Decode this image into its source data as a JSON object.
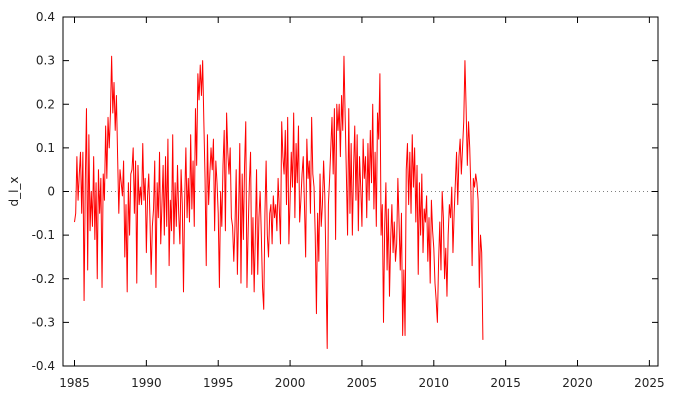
{
  "chart_data": {
    "type": "line",
    "title": "",
    "xlabel": "",
    "ylabel": "d_l_x",
    "xlim": [
      1984.2,
      2025.6
    ],
    "ylim": [
      -0.4,
      0.4
    ],
    "x_ticks": [
      "1985",
      "1990",
      "1995",
      "2000",
      "2005",
      "2010",
      "2015",
      "2020",
      "2025"
    ],
    "y_ticks": [
      "-0.4",
      "-0.3",
      "-0.2",
      "-0.1",
      "0",
      "0.1",
      "0.2",
      "0.3",
      "0.4"
    ],
    "zero_line": true,
    "grid": false,
    "legend": "none",
    "colors": {
      "series": "#ff0000",
      "zero_line": "#808080",
      "axes": "#000000"
    },
    "x_start": 1985.0,
    "x_step": 0.0833333,
    "series": [
      {
        "values": [
          -0.07,
          -0.05,
          0.08,
          -0.02,
          0.04,
          0.09,
          -0.05,
          0.09,
          -0.25,
          0.02,
          0.19,
          -0.18,
          0.13,
          -0.09,
          0.0,
          -0.08,
          0.08,
          -0.11,
          0.02,
          -0.2,
          0.05,
          -0.05,
          0.03,
          -0.22,
          0.04,
          -0.02,
          0.15,
          0.03,
          0.17,
          0.1,
          0.18,
          0.31,
          0.18,
          0.25,
          0.14,
          0.22,
          0.08,
          -0.05,
          0.05,
          0.02,
          -0.01,
          0.07,
          -0.15,
          -0.03,
          -0.23,
          0.02,
          -0.1,
          0.04,
          0.05,
          0.1,
          -0.05,
          0.07,
          -0.21,
          0.06,
          -0.03,
          0.01,
          -0.03,
          0.11,
          -0.02,
          0.03,
          -0.14,
          -0.01,
          0.04,
          -0.06,
          -0.19,
          -0.08,
          -0.04,
          0.07,
          -0.22,
          0.02,
          -0.06,
          0.09,
          -0.12,
          -0.03,
          0.06,
          -0.1,
          0.08,
          -0.08,
          0.12,
          -0.17,
          -0.02,
          -0.09,
          0.13,
          -0.12,
          0.02,
          -0.08,
          0.06,
          -0.05,
          -0.12,
          0.05,
          -0.03,
          -0.23,
          -0.02,
          0.1,
          -0.06,
          0.03,
          -0.07,
          0.13,
          -0.04,
          0.07,
          -0.08,
          0.19,
          0.06,
          0.27,
          0.21,
          0.29,
          0.22,
          0.3,
          0.16,
          0.03,
          -0.17,
          0.13,
          -0.03,
          0.04,
          0.1,
          0.05,
          0.12,
          -0.09,
          0.07,
          0.02,
          -0.05,
          -0.22,
          0.0,
          -0.08,
          0.06,
          0.14,
          -0.09,
          0.18,
          0.09,
          0.04,
          0.1,
          -0.06,
          -0.08,
          -0.16,
          -0.08,
          0.05,
          -0.19,
          -0.05,
          0.11,
          -0.21,
          0.04,
          -0.11,
          0.06,
          0.16,
          -0.22,
          -0.09,
          0.02,
          0.09,
          -0.19,
          -0.06,
          -0.23,
          -0.1,
          0.05,
          -0.19,
          -0.06,
          0.0,
          -0.1,
          -0.22,
          -0.27,
          -0.05,
          0.07,
          -0.1,
          -0.15,
          -0.05,
          -0.03,
          -0.12,
          -0.01,
          -0.06,
          -0.03,
          -0.09,
          0.03,
          -0.04,
          -0.12,
          0.16,
          0.08,
          0.04,
          0.14,
          -0.03,
          0.17,
          -0.12,
          -0.02,
          0.09,
          0.01,
          0.18,
          -0.06,
          0.11,
          0.02,
          0.15,
          -0.07,
          -0.02,
          0.04,
          0.08,
          -0.03,
          -0.15,
          0.12,
          0.03,
          0.07,
          -0.05,
          0.17,
          0.04,
          0.01,
          -0.1,
          -0.28,
          -0.05,
          -0.16,
          0.04,
          -0.08,
          -0.03,
          0.07,
          -0.01,
          -0.18,
          -0.36,
          -0.03,
          0.03,
          0.1,
          0.17,
          0.04,
          0.19,
          -0.11,
          0.2,
          0.14,
          0.2,
          0.08,
          0.22,
          0.14,
          0.31,
          0.17,
          0.04,
          -0.1,
          0.19,
          -0.05,
          0.11,
          -0.1,
          0.05,
          0.15,
          -0.02,
          0.13,
          -0.09,
          0.08,
          0.01,
          -0.08,
          0.12,
          0.03,
          0.08,
          -0.06,
          0.11,
          -0.02,
          0.14,
          0.02,
          0.2,
          -0.04,
          0.09,
          -0.08,
          0.18,
          0.12,
          0.27,
          -0.1,
          -0.03,
          -0.3,
          -0.08,
          0.02,
          -0.18,
          -0.04,
          -0.24,
          -0.11,
          -0.03,
          -0.14,
          -0.07,
          -0.16,
          -0.12,
          0.03,
          -0.07,
          -0.18,
          -0.05,
          -0.33,
          -0.18,
          -0.33,
          0.05,
          0.11,
          -0.03,
          0.09,
          -0.05,
          0.13,
          0.01,
          0.1,
          -0.07,
          0.06,
          -0.19,
          0.02,
          -0.1,
          0.04,
          -0.14,
          -0.04,
          -0.07,
          -0.01,
          -0.16,
          -0.06,
          -0.21,
          -0.02,
          -0.09,
          -0.13,
          -0.21,
          -0.25,
          -0.3,
          -0.16,
          -0.07,
          -0.18,
          0.0,
          -0.06,
          -0.2,
          -0.13,
          -0.24,
          -0.1,
          -0.03,
          -0.06,
          0.01,
          -0.14,
          -0.05,
          0.02,
          0.09,
          -0.03,
          0.08,
          0.12,
          0.04,
          0.1,
          0.16,
          0.3,
          0.19,
          0.06,
          0.16,
          0.1,
          0.0,
          -0.17,
          0.03,
          0.01,
          0.04,
          0.02,
          -0.02,
          -0.22,
          -0.1,
          -0.14,
          -0.34
        ]
      }
    ]
  }
}
